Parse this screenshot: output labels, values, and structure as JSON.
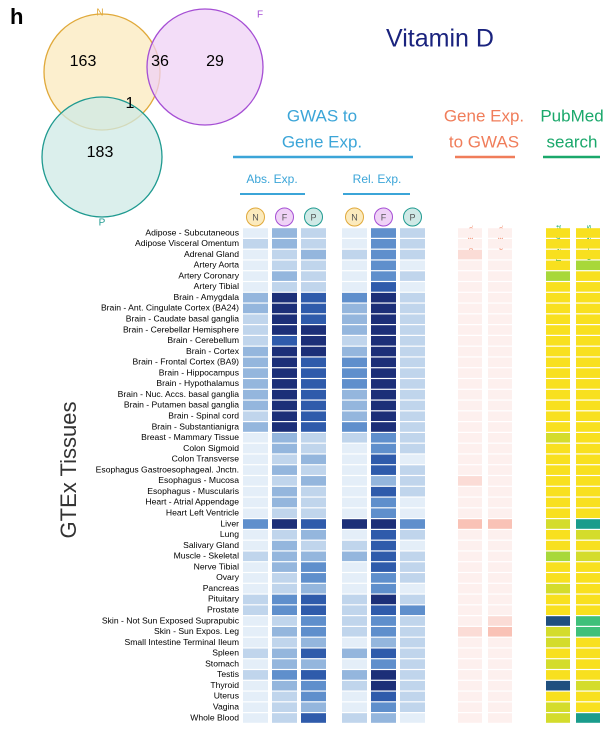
{
  "panel": "h",
  "title": "Vitamin D",
  "venn": {
    "sets": [
      {
        "label": "N",
        "color": "#e0a93a",
        "fill": "#fbeabd"
      },
      {
        "label": "F",
        "color": "#a54ed4",
        "fill": "#efd2f6"
      },
      {
        "label": "P",
        "color": "#1f9a90",
        "fill": "#cfe9e6"
      }
    ],
    "regions": {
      "N": 163,
      "NF": 36,
      "F": 29,
      "NP": 1,
      "P": 183
    }
  },
  "heatmap": {
    "y_label": "GTEx Tissues",
    "groups": [
      {
        "title": [
          "GWAS to",
          "Gene Exp."
        ],
        "color": "#3ba5d8",
        "subgroups": [
          "Abs. Exp.",
          "Rel. Exp."
        ]
      },
      {
        "title": [
          "Gene Exp.",
          "to GWAS"
        ],
        "color": "#f07d5a",
        "columns": [
          "Abs. Exp.",
          "Rel. Exp."
        ]
      },
      {
        "title": [
          "PubMed",
          "search"
        ],
        "color": "#1aa86b",
        "columns": [
          "Title & Abst",
          "MeSH terms"
        ]
      }
    ],
    "palettes": {
      "gwas_to_gene": [
        "#e4eef8",
        "#c0d5ec",
        "#94b6dd",
        "#5f8fcc",
        "#2f5bab",
        "#1c2f78"
      ],
      "gene_to_gwas": [
        "#fdf0ee",
        "#fbdcd6",
        "#f9c2b6"
      ],
      "pubmed": [
        "#f8e01f",
        "#d4dc2c",
        "#a8d83a",
        "#3fc07a",
        "#1a9c8c",
        "#1f4f7f"
      ]
    },
    "tissues": [
      "Adipose - Subcutaneous",
      "Adipose Visceral Omentum",
      "Adrenal Gland",
      "Artery Aorta",
      "Artery Coronary",
      "Artery Tibial",
      "Brain - Amygdala",
      "Brain - Ant. Cingulate Cortex (BA24)",
      "Brain - Caudate basal ganglia",
      "Brain - Cerebellar Hemisphere",
      "Brain - Cerebellum",
      "Brain - Cortex",
      "Brain - Frontal Cortex (BA9)",
      "Brain - Hippocampus",
      "Brain - Hypothalamus",
      "Brain - Nuc. Accs. basal ganglia",
      "Brain - Putamen basal ganglia",
      "Brain - Spinal cord",
      "Brain - Substantianigra",
      "Breast - Mammary Tissue",
      "Colon Sigmoid",
      "Colon Transverse",
      "Esophagus Gastroesophageal. Jnctn.",
      "Esophagus - Mucosa",
      "Esophagus - Muscularis",
      "Heart - Atrial Appendage",
      "Heart Left Ventricle",
      "Liver",
      "Lung",
      "Salivary Gland",
      "Muscle - Skeletal",
      "Nerve Tibial",
      "Ovary",
      "Pancreas",
      "Pituitary",
      "Prostate",
      "Skin - Not Sun Exposed Suprapubic",
      "Skin - Sun Expos. Leg",
      "Small Intestine Terminal Ileum",
      "Spleen",
      "Stomach",
      "Testis",
      "Thyroid",
      "Uterus",
      "Vagina",
      "Whole Blood"
    ],
    "gwas_to_gene": [
      [
        0,
        2,
        1,
        0,
        3,
        1
      ],
      [
        1,
        2,
        1,
        0,
        3,
        1
      ],
      [
        0,
        1,
        2,
        1,
        3,
        1
      ],
      [
        0,
        1,
        1,
        0,
        3,
        0
      ],
      [
        0,
        2,
        1,
        0,
        3,
        1
      ],
      [
        0,
        1,
        1,
        0,
        4,
        0
      ],
      [
        2,
        5,
        4,
        3,
        5,
        1
      ],
      [
        2,
        5,
        4,
        2,
        5,
        1
      ],
      [
        1,
        5,
        4,
        2,
        5,
        1
      ],
      [
        1,
        5,
        5,
        2,
        5,
        1
      ],
      [
        1,
        4,
        5,
        1,
        5,
        1
      ],
      [
        2,
        5,
        5,
        2,
        5,
        1
      ],
      [
        2,
        5,
        4,
        3,
        5,
        1
      ],
      [
        2,
        5,
        4,
        3,
        5,
        1
      ],
      [
        2,
        5,
        4,
        3,
        5,
        1
      ],
      [
        2,
        5,
        4,
        2,
        5,
        1
      ],
      [
        2,
        5,
        4,
        2,
        5,
        1
      ],
      [
        1,
        5,
        4,
        2,
        5,
        1
      ],
      [
        2,
        5,
        4,
        3,
        5,
        1
      ],
      [
        0,
        2,
        1,
        1,
        3,
        1
      ],
      [
        0,
        2,
        1,
        0,
        3,
        1
      ],
      [
        0,
        1,
        2,
        0,
        4,
        0
      ],
      [
        0,
        2,
        1,
        0,
        4,
        1
      ],
      [
        0,
        1,
        2,
        0,
        2,
        1
      ],
      [
        0,
        2,
        1,
        0,
        4,
        1
      ],
      [
        0,
        2,
        1,
        0,
        3,
        0
      ],
      [
        0,
        1,
        1,
        0,
        3,
        0
      ],
      [
        3,
        5,
        4,
        5,
        5,
        3
      ],
      [
        0,
        1,
        2,
        0,
        4,
        1
      ],
      [
        0,
        2,
        1,
        1,
        4,
        0
      ],
      [
        1,
        2,
        2,
        2,
        4,
        1
      ],
      [
        0,
        2,
        3,
        0,
        4,
        1
      ],
      [
        0,
        1,
        3,
        0,
        3,
        1
      ],
      [
        0,
        1,
        2,
        0,
        3,
        0
      ],
      [
        1,
        3,
        4,
        1,
        5,
        1
      ],
      [
        1,
        3,
        4,
        1,
        4,
        3
      ],
      [
        0,
        1,
        3,
        1,
        3,
        1
      ],
      [
        0,
        2,
        3,
        1,
        3,
        1
      ],
      [
        0,
        1,
        2,
        0,
        2,
        1
      ],
      [
        1,
        2,
        4,
        2,
        4,
        1
      ],
      [
        0,
        2,
        2,
        0,
        3,
        1
      ],
      [
        1,
        3,
        4,
        2,
        5,
        1
      ],
      [
        0,
        2,
        3,
        1,
        5,
        1
      ],
      [
        0,
        1,
        3,
        0,
        4,
        1
      ],
      [
        0,
        1,
        2,
        0,
        3,
        1
      ],
      [
        0,
        1,
        4,
        1,
        2,
        0
      ]
    ],
    "gene_to_gwas": [
      [
        0,
        0
      ],
      [
        0,
        0
      ],
      [
        1,
        0
      ],
      [
        0,
        0
      ],
      [
        0,
        0
      ],
      [
        0,
        0
      ],
      [
        0,
        0
      ],
      [
        0,
        0
      ],
      [
        0,
        0
      ],
      [
        0,
        0
      ],
      [
        0,
        0
      ],
      [
        0,
        0
      ],
      [
        0,
        0
      ],
      [
        0,
        0
      ],
      [
        0,
        0
      ],
      [
        0,
        0
      ],
      [
        0,
        0
      ],
      [
        0,
        0
      ],
      [
        0,
        0
      ],
      [
        0,
        0
      ],
      [
        0,
        0
      ],
      [
        0,
        0
      ],
      [
        0,
        0
      ],
      [
        1,
        0
      ],
      [
        0,
        0
      ],
      [
        0,
        0
      ],
      [
        0,
        0
      ],
      [
        2,
        2
      ],
      [
        0,
        0
      ],
      [
        0,
        0
      ],
      [
        0,
        0
      ],
      [
        0,
        0
      ],
      [
        0,
        0
      ],
      [
        0,
        0
      ],
      [
        0,
        0
      ],
      [
        0,
        0
      ],
      [
        0,
        1
      ],
      [
        1,
        2
      ],
      [
        0,
        0
      ],
      [
        0,
        0
      ],
      [
        0,
        0
      ],
      [
        0,
        0
      ],
      [
        0,
        0
      ],
      [
        0,
        0
      ],
      [
        0,
        0
      ],
      [
        0,
        0
      ]
    ],
    "pubmed": [
      [
        0,
        0
      ],
      [
        0,
        0
      ],
      [
        0,
        0
      ],
      [
        0,
        2
      ],
      [
        2,
        0
      ],
      [
        0,
        0
      ],
      [
        0,
        0
      ],
      [
        0,
        0
      ],
      [
        0,
        0
      ],
      [
        0,
        0
      ],
      [
        0,
        0
      ],
      [
        0,
        0
      ],
      [
        0,
        0
      ],
      [
        0,
        0
      ],
      [
        0,
        0
      ],
      [
        0,
        0
      ],
      [
        0,
        0
      ],
      [
        0,
        0
      ],
      [
        0,
        0
      ],
      [
        1,
        0
      ],
      [
        0,
        0
      ],
      [
        0,
        0
      ],
      [
        0,
        0
      ],
      [
        0,
        0
      ],
      [
        0,
        0
      ],
      [
        0,
        0
      ],
      [
        0,
        0
      ],
      [
        1,
        4
      ],
      [
        0,
        1
      ],
      [
        0,
        0
      ],
      [
        2,
        1
      ],
      [
        0,
        0
      ],
      [
        0,
        0
      ],
      [
        1,
        0
      ],
      [
        0,
        0
      ],
      [
        0,
        0
      ],
      [
        5,
        3
      ],
      [
        1,
        3
      ],
      [
        1,
        0
      ],
      [
        0,
        0
      ],
      [
        1,
        0
      ],
      [
        0,
        0
      ],
      [
        5,
        1
      ],
      [
        0,
        0
      ],
      [
        1,
        0
      ],
      [
        1,
        4
      ]
    ]
  }
}
